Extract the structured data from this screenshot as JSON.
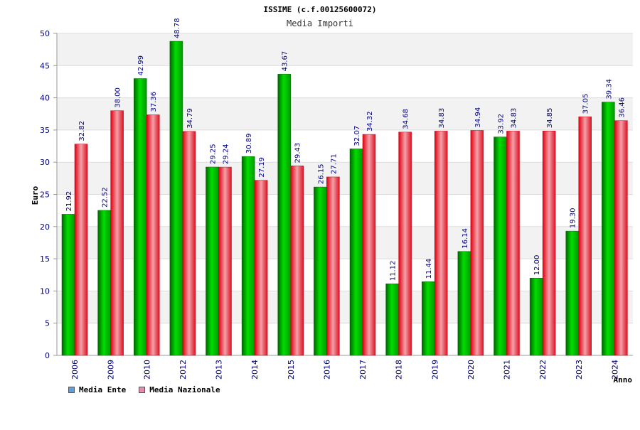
{
  "chart_data": {
    "type": "bar",
    "title": "ISSIME (c.f.00125600072)",
    "subtitle": "Media Importi",
    "xlabel": "Anno",
    "ylabel": "Euro",
    "ylim": [
      0,
      50
    ],
    "yticks": [
      0,
      5,
      10,
      15,
      20,
      25,
      30,
      35,
      40,
      45,
      50
    ],
    "categories": [
      "2006",
      "2009",
      "2010",
      "2012",
      "2013",
      "2014",
      "2015",
      "2016",
      "2017",
      "2018",
      "2019",
      "2020",
      "2021",
      "2022",
      "2023",
      "2024"
    ],
    "series": [
      {
        "name": "Media Ente",
        "color": "#00cc00",
        "legend_color": "#5aa0e6",
        "values": [
          21.92,
          22.52,
          42.99,
          48.78,
          29.25,
          30.89,
          43.67,
          26.15,
          32.07,
          11.12,
          11.44,
          16.14,
          33.92,
          12.0,
          19.3,
          39.34
        ]
      },
      {
        "name": "Media Nazionale",
        "color": "#ee2233",
        "legend_color": "#e68ab0",
        "values": [
          32.82,
          38.0,
          37.36,
          34.79,
          29.24,
          27.19,
          29.43,
          27.71,
          34.32,
          34.68,
          34.83,
          34.94,
          34.83,
          34.85,
          37.05,
          36.46
        ]
      }
    ],
    "grid": true,
    "legend_position": "bottom-left"
  }
}
